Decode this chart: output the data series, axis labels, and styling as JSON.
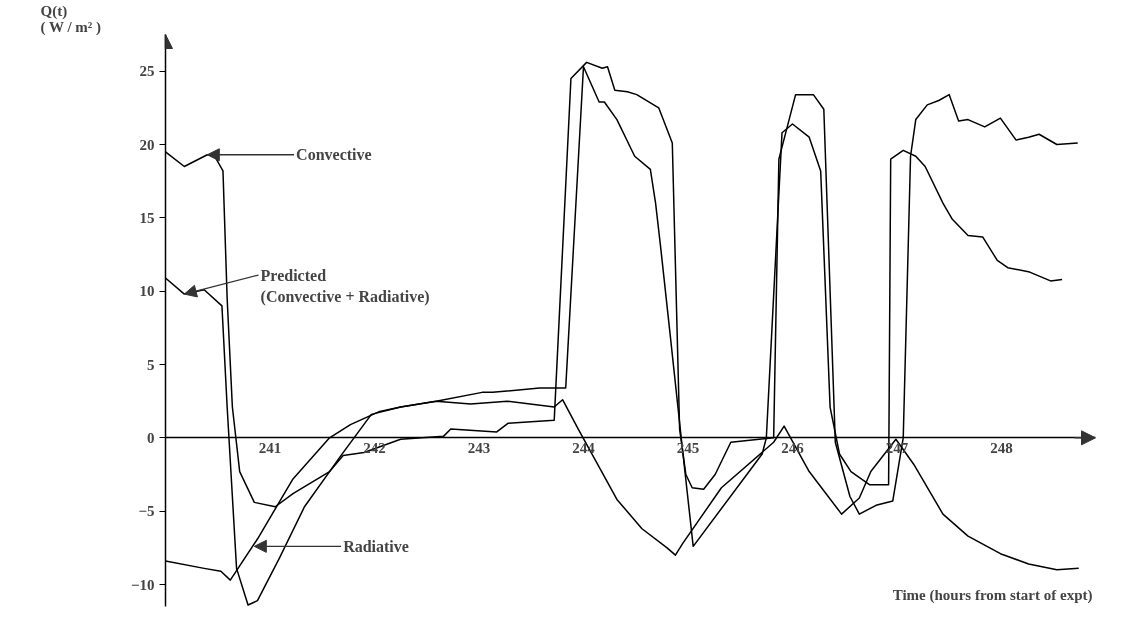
{
  "chart_data": {
    "type": "line",
    "xlabel": "Time (hours from start of expt)",
    "ylabel": "Q(t)\n( W / m² )",
    "xlim": [
      240,
      248.9
    ],
    "ylim": [
      -11.5,
      27.5
    ],
    "xticks": [
      241,
      242,
      243,
      244,
      245,
      246,
      247,
      248
    ],
    "yticks": [
      -10,
      -5,
      0,
      5,
      10,
      15,
      20,
      25
    ],
    "grid": false,
    "marker": "none",
    "line_style": "solid",
    "series": [
      {
        "color": "#000000",
        "x": [
          240.0,
          240.18,
          240.4,
          240.47,
          240.55,
          240.59,
          240.64,
          240.71,
          240.85,
          241.05,
          241.22,
          241.57,
          241.7,
          241.9,
          242.25,
          242.66,
          242.73,
          243.17,
          243.28,
          243.72,
          243.88,
          244.03,
          244.18,
          244.23,
          244.3,
          244.42,
          244.51,
          244.72,
          244.85,
          244.92,
          244.98,
          245.04,
          245.15,
          245.26,
          245.41,
          245.82,
          245.87,
          246.03,
          246.2,
          246.3,
          246.41,
          246.55,
          246.64,
          246.8,
          246.96,
          247.06,
          247.13,
          247.18,
          247.29,
          247.4,
          247.5,
          247.59,
          247.68,
          247.84,
          247.99,
          248.14,
          248.26,
          248.36,
          248.53,
          248.73
        ],
        "values": [
          19.5,
          18.5,
          19.3,
          19.2,
          18.2,
          9.5,
          2.1,
          -2.3,
          -4.4,
          -4.7,
          -3.8,
          -2.3,
          -1.2,
          -1.0,
          -0.1,
          0.1,
          0.6,
          0.4,
          1.0,
          1.2,
          24.5,
          25.6,
          25.2,
          25.3,
          23.7,
          23.6,
          23.4,
          22.5,
          20.1,
          0.6,
          -2.5,
          -3.4,
          -3.5,
          -2.5,
          -0.3,
          0.0,
          19.0,
          23.4,
          23.4,
          22.4,
          -0.3,
          -4.0,
          -5.2,
          -4.6,
          -4.3,
          0.0,
          19.2,
          21.7,
          22.7,
          23.0,
          23.4,
          21.6,
          21.7,
          21.2,
          21.8,
          20.3,
          20.5,
          20.7,
          20.0,
          20.1
        ]
      },
      {
        "color": "#000000",
        "x": [
          240.0,
          240.18,
          240.37,
          240.54,
          240.59,
          240.68,
          240.79,
          240.88,
          241.09,
          241.33,
          241.57,
          241.67,
          241.97,
          242.25,
          242.59,
          243.03,
          243.13,
          243.58,
          243.83,
          244.0,
          244.15,
          244.2,
          244.32,
          244.49,
          244.64,
          244.69,
          244.74,
          244.83,
          244.94,
          245.05,
          245.71,
          245.75,
          245.9,
          246.0,
          246.16,
          246.27,
          246.36,
          246.45,
          246.56,
          246.74,
          246.92,
          246.94,
          247.06,
          247.18,
          247.27,
          247.44,
          247.53,
          247.68,
          247.82,
          247.96,
          248.06,
          248.27,
          248.47,
          248.58
        ],
        "values": [
          10.9,
          9.8,
          10.1,
          9.0,
          2.1,
          -8.9,
          -11.4,
          -11.1,
          -8.2,
          -4.7,
          -2.3,
          -1.3,
          1.6,
          2.1,
          2.5,
          3.1,
          3.1,
          3.4,
          3.4,
          25.3,
          22.9,
          22.9,
          21.7,
          19.2,
          18.3,
          16.0,
          12.9,
          7.0,
          -0.3,
          -7.4,
          -1.1,
          0.0,
          20.8,
          21.4,
          20.5,
          18.2,
          2.1,
          -1.1,
          -2.3,
          -3.2,
          -3.2,
          19.0,
          19.6,
          19.2,
          18.5,
          16.0,
          14.9,
          13.8,
          13.7,
          12.1,
          11.6,
          11.3,
          10.7,
          10.8
        ]
      },
      {
        "color": "#000000",
        "x": [
          240.0,
          240.37,
          240.53,
          240.62,
          240.88,
          241.22,
          241.57,
          241.77,
          242.05,
          242.25,
          242.59,
          242.92,
          243.27,
          243.72,
          243.8,
          243.95,
          244.12,
          244.32,
          244.56,
          244.8,
          244.88,
          244.95,
          245.32,
          245.82,
          245.92,
          246.16,
          246.47,
          246.64,
          246.75,
          246.99,
          247.16,
          247.44,
          247.68,
          247.99,
          248.26,
          248.53,
          248.74
        ],
        "values": [
          -8.4,
          -8.9,
          -9.1,
          -9.7,
          -6.9,
          -2.8,
          0.0,
          0.9,
          1.8,
          2.1,
          2.5,
          2.3,
          2.5,
          2.1,
          2.6,
          0.6,
          -1.6,
          -4.2,
          -6.2,
          -7.5,
          -8.0,
          -7.2,
          -3.4,
          -0.3,
          0.8,
          -2.3,
          -5.2,
          -4.1,
          -2.3,
          -0.1,
          -1.8,
          -5.2,
          -6.7,
          -7.9,
          -8.6,
          -9.0,
          -8.9
        ]
      }
    ],
    "annotations": [
      {
        "text": "Convective",
        "x": 240.4,
        "y": 19.3
      },
      {
        "text": "Predicted\n(Convective + Radiative)",
        "x": 240.18,
        "y": 9.8
      },
      {
        "text": "Radiative",
        "x": 240.85,
        "y": -7.4
      }
    ]
  }
}
